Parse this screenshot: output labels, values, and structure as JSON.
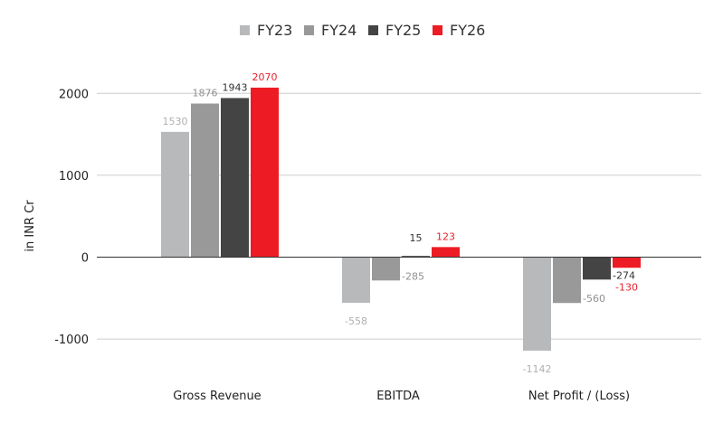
{
  "chart_data": {
    "type": "bar",
    "categories": [
      "Gross Revenue",
      "EBITDA",
      "Net Profit / (Loss)"
    ],
    "series": [
      {
        "name": "FY23",
        "color": "#b8b9bb",
        "label_color": "#b0b0b0",
        "values": [
          1530,
          -558,
          -1142
        ]
      },
      {
        "name": "FY24",
        "color": "#999999",
        "label_color": "#909090",
        "values": [
          1876,
          -285,
          -560
        ]
      },
      {
        "name": "FY25",
        "color": "#444444",
        "label_color": "#333333",
        "values": [
          1943,
          15,
          -274
        ]
      },
      {
        "name": "FY26",
        "color": "#ed1c24",
        "label_color": "#e8212e",
        "values": [
          2070,
          123,
          -130
        ]
      }
    ],
    "ylabel": "in INR Cr",
    "xlabel": "",
    "ylim": [
      -1300,
      2300
    ],
    "yticks": [
      -1000,
      0,
      1000,
      2000
    ],
    "grid": true,
    "legend_position": "top-center"
  }
}
